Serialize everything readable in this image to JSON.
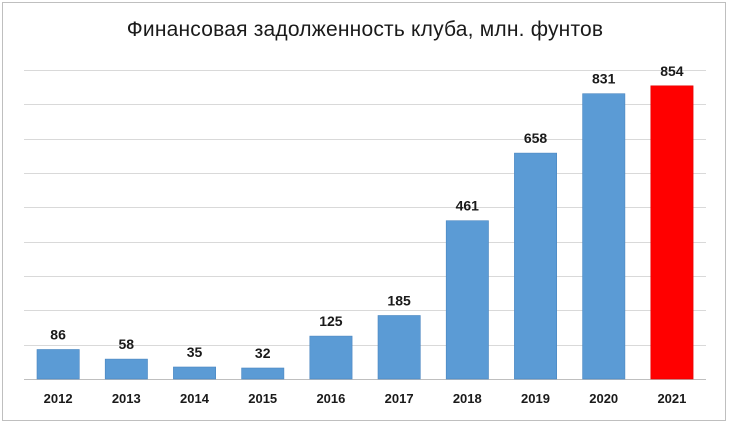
{
  "chart_data": {
    "type": "bar",
    "title": "Финансовая задолженность клуба, млн. фунтов",
    "xlabel": "",
    "ylabel": "",
    "categories": [
      "2012",
      "2013",
      "2014",
      "2015",
      "2016",
      "2017",
      "2018",
      "2019",
      "2020",
      "2021"
    ],
    "values": [
      86,
      58,
      35,
      32,
      125,
      185,
      461,
      658,
      831,
      854
    ],
    "ylim": [
      0,
      900
    ],
    "grid": true,
    "legend": "none",
    "colors": {
      "default": "#5b9bd5",
      "highlight": "#ff0000",
      "highlight_category": "2021"
    }
  }
}
